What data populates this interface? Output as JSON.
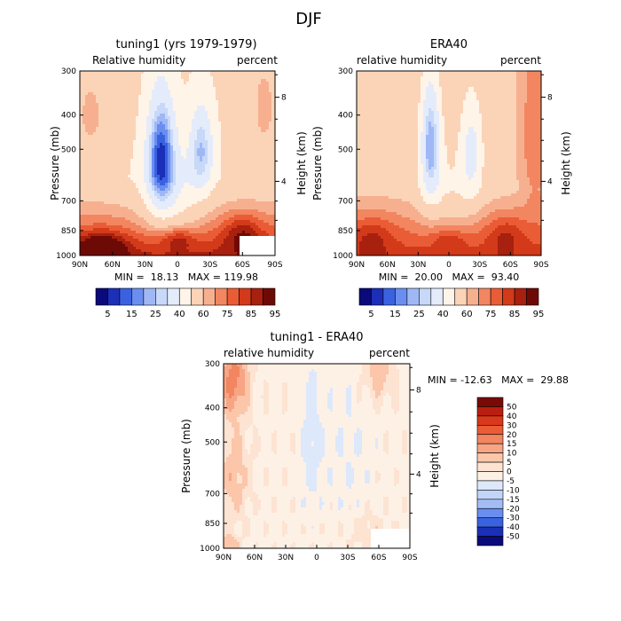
{
  "figure": {
    "title": "DJF"
  },
  "chart_data": [
    {
      "type": "heatmap",
      "title": "tuning1 (yrs 1979-1979)",
      "left_label": "Relative humidity",
      "right_label": "percent",
      "ylabel": "Pressure (mb)",
      "y2label": "Height (km)",
      "x_ticks": [
        "90N",
        "60N",
        "30N",
        "0",
        "30S",
        "60S",
        "90S"
      ],
      "y_ticks": [
        "300",
        "400",
        "500",
        "700",
        "850",
        "1000"
      ],
      "y2_ticks": [
        "8",
        "4"
      ],
      "stats": "MIN =  18.13   MAX = 119.98",
      "field": "tuning",
      "missing_box": true,
      "colorbar_labels": [
        "5",
        "15",
        "25",
        "40",
        "60",
        "75",
        "85",
        "95"
      ],
      "colorbar_colors": [
        "#0a0a7a",
        "#1b2fb8",
        "#3a62e0",
        "#6a8ef0",
        "#9fb8f5",
        "#c8d8f8",
        "#e4ecfb",
        "#fff4e8",
        "#fbd4b8",
        "#f7b08f",
        "#f28660",
        "#ea5c35",
        "#d23a1a",
        "#a8200e",
        "#6e0a05"
      ],
      "xlim": [
        90,
        -90
      ],
      "ylim": [
        300,
        1000
      ]
    },
    {
      "type": "heatmap",
      "title": "ERA40",
      "left_label": "relative humidity",
      "right_label": "percent",
      "ylabel": "Pressure (mb)",
      "y2label": "Height (km)",
      "x_ticks": [
        "90N",
        "60N",
        "30N",
        "0",
        "30S",
        "60S",
        "90S"
      ],
      "y_ticks": [
        "300",
        "400",
        "500",
        "700",
        "850",
        "1000"
      ],
      "y2_ticks": [
        "8",
        "4"
      ],
      "stats": "MIN =  20.00   MAX =  93.40",
      "field": "era",
      "missing_box": false,
      "colorbar_labels": [
        "5",
        "15",
        "25",
        "40",
        "60",
        "75",
        "85",
        "95"
      ],
      "colorbar_colors": [
        "#0a0a7a",
        "#1b2fb8",
        "#3a62e0",
        "#6a8ef0",
        "#9fb8f5",
        "#c8d8f8",
        "#e4ecfb",
        "#fff4e8",
        "#fbd4b8",
        "#f7b08f",
        "#f28660",
        "#ea5c35",
        "#d23a1a",
        "#a8200e",
        "#6e0a05"
      ],
      "xlim": [
        90,
        -90
      ],
      "ylim": [
        300,
        1000
      ]
    },
    {
      "type": "heatmap",
      "title": "tuning1 - ERA40",
      "left_label": "relative humidity",
      "right_label": "percent",
      "ylabel": "Pressure (mb)",
      "y2label": "Height (km)",
      "x_ticks": [
        "90N",
        "60N",
        "30N",
        "0",
        "30S",
        "60S",
        "90S"
      ],
      "y_ticks": [
        "300",
        "400",
        "500",
        "700",
        "850",
        "1000"
      ],
      "y2_ticks": [
        "8",
        "4"
      ],
      "stats": "MIN = -12.63   MAX =  29.88",
      "field": "diff",
      "missing_box": true,
      "colorbar_labels": [
        "50",
        "40",
        "30",
        "20",
        "15",
        "10",
        "5",
        "0",
        "-5",
        "-10",
        "-15",
        "-20",
        "-30",
        "-40",
        "-50"
      ],
      "colorbar_colors": [
        "#7a0a05",
        "#b81f10",
        "#d9381a",
        "#ea5c35",
        "#f28660",
        "#f7a585",
        "#fbc6aa",
        "#fde3d2",
        "#fdf1e6",
        "#dde8fb",
        "#c2d4f8",
        "#a3bdf4",
        "#6a8ef0",
        "#3a62e0",
        "#1b2fb8",
        "#0a0a7a"
      ],
      "xlim": [
        90,
        -90
      ],
      "ylim": [
        300,
        1000
      ]
    }
  ]
}
